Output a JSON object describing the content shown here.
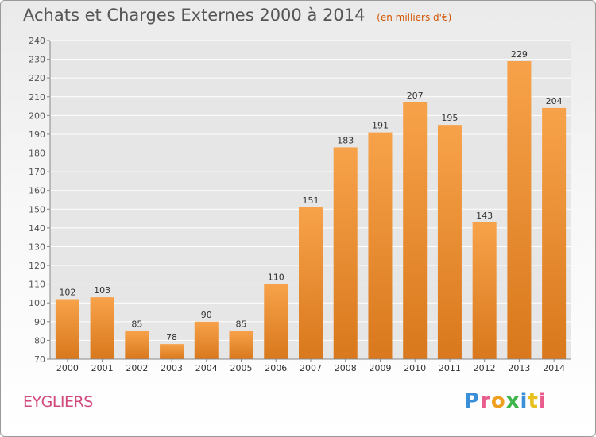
{
  "header": {
    "title": "Achats et Charges Externes 2000 à 2014",
    "unit": "(en milliers d'€)"
  },
  "footer": {
    "commune": "EYGLIERS",
    "logo_text": "Proxiti"
  },
  "colors": {
    "bar_top": "#f7a24a",
    "bar_bottom": "#d9781c",
    "grid": "#ffffff",
    "commune_text": "#d14a7e",
    "logo_letters": [
      "#3a8fd8",
      "#e85d8c",
      "#f0a020",
      "#3db54a",
      "#3a8fd8",
      "#e8c020",
      "#e85d8c"
    ]
  },
  "chart_data": {
    "type": "bar",
    "title": "Achats et Charges Externes 2000 à 2014",
    "subtitle": "(en milliers d'€)",
    "xlabel": "",
    "ylabel": "",
    "categories": [
      "2000",
      "2001",
      "2002",
      "2003",
      "2004",
      "2005",
      "2006",
      "2007",
      "2008",
      "2009",
      "2010",
      "2011",
      "2012",
      "2013",
      "2014"
    ],
    "values": [
      102,
      103,
      85,
      78,
      90,
      85,
      110,
      151,
      183,
      191,
      207,
      195,
      143,
      229,
      204
    ],
    "ylim": [
      70,
      240
    ],
    "yticks": [
      70,
      80,
      90,
      100,
      110,
      120,
      130,
      140,
      150,
      160,
      170,
      180,
      190,
      200,
      210,
      220,
      230,
      240
    ],
    "grid": true,
    "legend": "none"
  }
}
